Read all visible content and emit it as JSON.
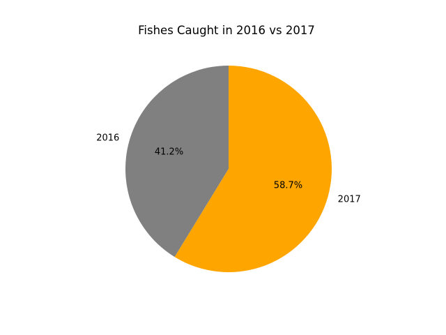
{
  "chart_data": {
    "type": "pie",
    "title": "Fishes Caught in 2016 vs 2017",
    "categories": [
      "2016",
      "2017"
    ],
    "values": [
      41.2,
      58.7
    ],
    "percent_labels": [
      "41.2%",
      "58.7%"
    ],
    "colors": [
      "#808080",
      "#ffa500"
    ],
    "start_angle_deg": 90,
    "direction": "counterclockwise",
    "legend": "none"
  }
}
